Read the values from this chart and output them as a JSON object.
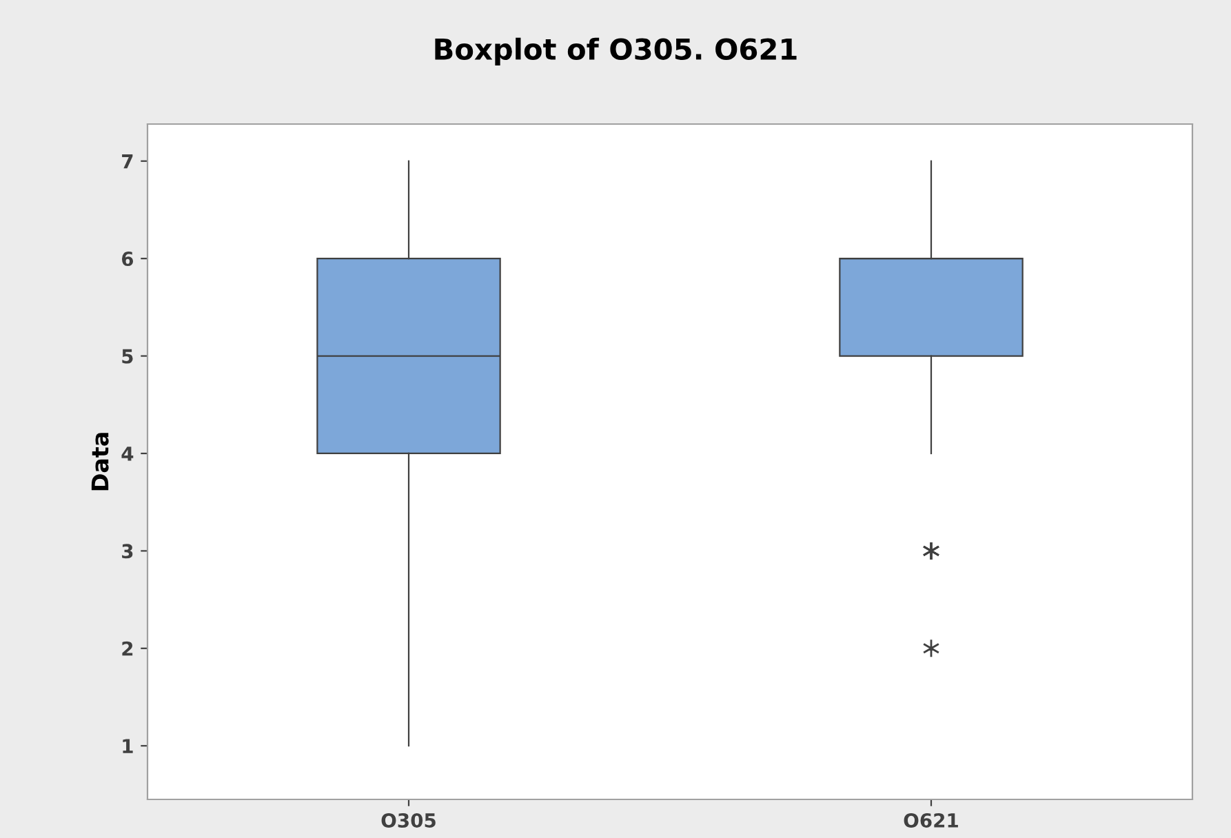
{
  "chart_data": {
    "type": "box",
    "title": "Boxplot of O305. O621",
    "ylabel": "Data",
    "categories": [
      "O305",
      "O621"
    ],
    "boxes": [
      {
        "low": 1,
        "q1": 4,
        "median": 5,
        "q3": 6,
        "high": 7
      },
      {
        "low": 4,
        "q1": 5,
        "median": 6,
        "q3": 6,
        "high": 7,
        "outliers": [
          3,
          3,
          3,
          3,
          3,
          2
        ]
      }
    ],
    "color": "#7da7d9",
    "ylim": [
      0.45,
      7.38
    ],
    "yticks": [
      1,
      2,
      3,
      4,
      5,
      6,
      7
    ],
    "grid": false
  }
}
